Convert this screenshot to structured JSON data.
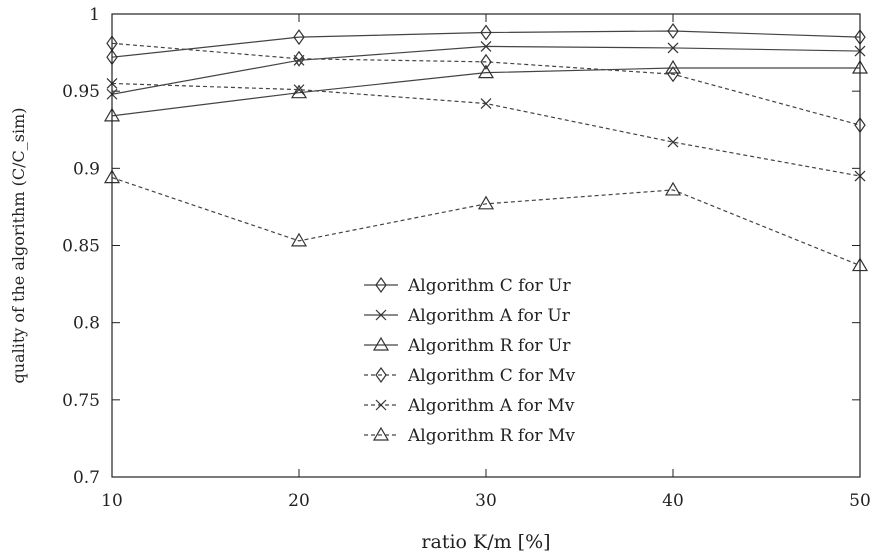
{
  "chart_data": {
    "type": "line",
    "title": "",
    "xlabel": "ratio K/m [%]",
    "ylabel": "quality of the algorithm (C/C_sim)",
    "xlim": [
      10,
      50
    ],
    "ylim": [
      0.7,
      1.0
    ],
    "x_ticks": [
      "10",
      "20",
      "30",
      "40",
      "50"
    ],
    "y_ticks": [
      "0.7",
      "0.75",
      "0.8",
      "0.85",
      "0.9",
      "0.95",
      "1"
    ],
    "x": [
      10,
      20,
      30,
      40,
      50
    ],
    "grid": false,
    "legend_position": "center",
    "series": [
      {
        "name": "Algorithm C for Ur",
        "values": [
          0.972,
          0.985,
          0.988,
          0.989,
          0.985
        ],
        "style": "solid",
        "marker": "diamond"
      },
      {
        "name": "Algorithm A for Ur",
        "values": [
          0.948,
          0.97,
          0.979,
          0.978,
          0.976
        ],
        "style": "solid",
        "marker": "x"
      },
      {
        "name": "Algorithm R for Ur",
        "values": [
          0.934,
          0.949,
          0.962,
          0.965,
          0.965
        ],
        "style": "solid",
        "marker": "triangle"
      },
      {
        "name": "Algorithm C for Mv",
        "values": [
          0.981,
          0.971,
          0.969,
          0.961,
          0.928
        ],
        "style": "dashed",
        "marker": "diamond"
      },
      {
        "name": "Algorithm A for Mv",
        "values": [
          0.955,
          0.951,
          0.942,
          0.917,
          0.895
        ],
        "style": "dashed",
        "marker": "x"
      },
      {
        "name": "Algorithm R for Mv",
        "values": [
          0.894,
          0.853,
          0.877,
          0.886,
          0.837
        ],
        "style": "dashed",
        "marker": "triangle"
      }
    ]
  }
}
